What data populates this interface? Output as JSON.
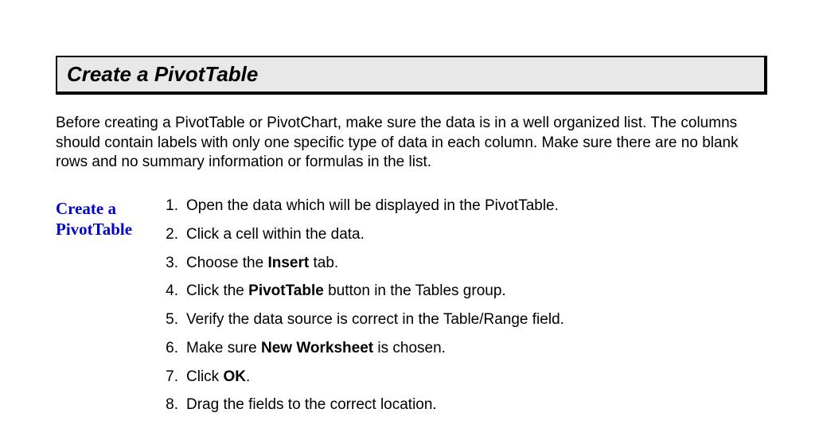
{
  "heading": "Create a PivotTable",
  "intro": "Before creating a PivotTable or PivotChart, make sure the data is in a well organized list.  The columns should contain labels with only one specific type of data in each column.  Make sure there are no blank rows and no summary information or formulas in the list.",
  "side_label_line1": "Create a",
  "side_label_line2": "PivotTable",
  "steps": {
    "s1": {
      "n": "1.",
      "pre": "Open the data which will be displayed in the PivotTable.",
      "bold": "",
      "post": ""
    },
    "s2": {
      "n": "2.",
      "pre": "Click a cell within the data.",
      "bold": "",
      "post": ""
    },
    "s3": {
      "n": "3.",
      "pre": "Choose the ",
      "bold": "Insert",
      "post": " tab."
    },
    "s4": {
      "n": "4.",
      "pre": "Click the ",
      "bold": "PivotTable",
      "post": " button in the Tables group."
    },
    "s5": {
      "n": "5.",
      "pre": "Verify the data source is correct in the Table/Range field.",
      "bold": "",
      "post": ""
    },
    "s6": {
      "n": "6.",
      "pre": "Make sure ",
      "bold": "New Worksheet",
      "post": " is chosen."
    },
    "s7": {
      "n": "7.",
      "pre": "Click ",
      "bold": "OK",
      "post": "."
    },
    "s8": {
      "n": "8.",
      "pre": "Drag the fields to the correct location.",
      "bold": "",
      "post": ""
    }
  },
  "colors": {
    "heading_bg": "#e8e8e8",
    "heading_border": "#000000",
    "side_label": "#0000cc",
    "text": "#000000",
    "page_bg": "#ffffff"
  },
  "fonts": {
    "body_family": "Arial, Helvetica, sans-serif",
    "side_family": "Times New Roman, Times, serif",
    "heading_size_pt": 20,
    "body_size_pt": 14,
    "side_size_pt": 16
  }
}
